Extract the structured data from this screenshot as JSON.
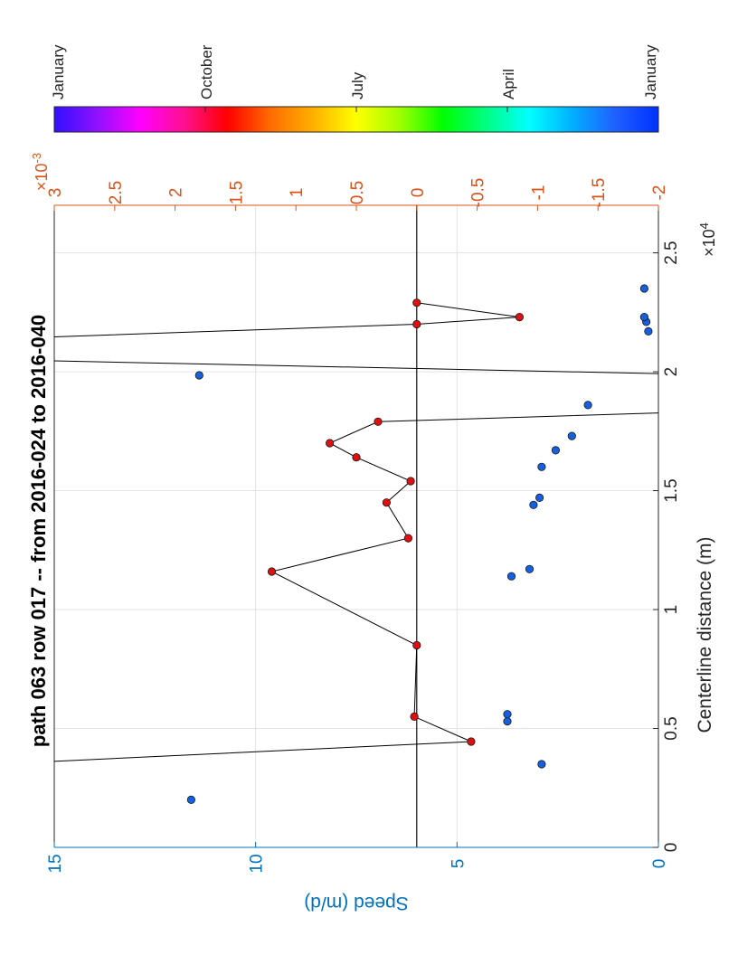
{
  "chart_data": {
    "type": "scatter",
    "title": "path 063 row 017  -- from 2016-024 to 2016-040",
    "orientation": "rotated 90° clockwise (page rotated)",
    "xlabel": "Centerline distance (m)",
    "x_exponent": "4",
    "xlim": [
      0,
      27000
    ],
    "x_ticks": [
      0,
      5000,
      10000,
      15000,
      20000,
      25000
    ],
    "x_tick_labels": [
      "0",
      "0.5",
      "1",
      "1.5",
      "2",
      "2.5"
    ],
    "x_multiplier_label": "×10",
    "y_left": {
      "label": "Speed (m/d)",
      "lim": [
        0,
        15
      ],
      "ticks": [
        0,
        5,
        10,
        15
      ],
      "tick_labels": [
        "0",
        "5",
        "10",
        "15"
      ],
      "color": "#0072BD"
    },
    "y_right": {
      "lim": [
        -0.002,
        0.003
      ],
      "ticks": [
        -0.002,
        -0.0015,
        -0.001,
        -0.0005,
        0,
        0.0005,
        0.001,
        0.0015,
        0.002,
        0.0025,
        0.003
      ],
      "tick_labels": [
        "-2",
        "-1.5",
        "-1",
        "-0.5",
        "0",
        "0.5",
        "1",
        "1.5",
        "2",
        "2.5",
        "3"
      ],
      "multiplier_label": "×10",
      "exponent": "-3",
      "color": "#D95319"
    },
    "grid": true,
    "zero_line_right": 0,
    "series": [
      {
        "marker": "blue-dot",
        "color": "#1560e0",
        "axis": "left",
        "points": [
          {
            "x": 2000,
            "y": 11.6
          },
          {
            "x": 3500,
            "y": 2.9
          },
          {
            "x": 5300,
            "y": 3.75
          },
          {
            "x": 5600,
            "y": 3.75
          },
          {
            "x": 11400,
            "y": 3.65
          },
          {
            "x": 11700,
            "y": 3.2
          },
          {
            "x": 14400,
            "y": 3.1
          },
          {
            "x": 14700,
            "y": 2.95
          },
          {
            "x": 16000,
            "y": 2.9
          },
          {
            "x": 16700,
            "y": 2.55
          },
          {
            "x": 17300,
            "y": 2.15
          },
          {
            "x": 18600,
            "y": 1.75
          },
          {
            "x": 19850,
            "y": 11.4
          },
          {
            "x": 21700,
            "y": 0.25
          },
          {
            "x": 22100,
            "y": 0.3
          },
          {
            "x": 22300,
            "y": 0.35
          },
          {
            "x": 23500,
            "y": 0.35
          }
        ]
      },
      {
        "marker": "red-dot-line",
        "color": "#e01010",
        "axis": "right",
        "line": [
          {
            "x": 3500,
            "y": 0.0035
          },
          {
            "x": 4450,
            "y": -0.00045
          },
          {
            "x": 5500,
            "y": 2e-05
          },
          {
            "x": 8500,
            "y": 0.0
          },
          {
            "x": 11600,
            "y": 0.0012
          },
          {
            "x": 13000,
            "y": 7e-05
          },
          {
            "x": 14500,
            "y": 0.00025
          },
          {
            "x": 15400,
            "y": 5e-05
          },
          {
            "x": 16400,
            "y": 0.0005
          },
          {
            "x": 17000,
            "y": 0.00072
          },
          {
            "x": 17900,
            "y": 0.00032
          },
          {
            "x": 18300,
            "y": -0.0022
          },
          {
            "x": 19900,
            "y": -0.0022
          },
          {
            "x": 20500,
            "y": 0.0034
          },
          {
            "x": 21400,
            "y": 0.0034
          },
          {
            "x": 22000,
            "y": 0.0
          },
          {
            "x": 22300,
            "y": -0.00085
          },
          {
            "x": 22900,
            "y": 0.0
          }
        ],
        "points": [
          {
            "x": 4450,
            "y": -0.00045
          },
          {
            "x": 5500,
            "y": 2e-05
          },
          {
            "x": 8500,
            "y": 0.0
          },
          {
            "x": 11600,
            "y": 0.0012
          },
          {
            "x": 13000,
            "y": 7e-05
          },
          {
            "x": 14500,
            "y": 0.00025
          },
          {
            "x": 15400,
            "y": 5e-05
          },
          {
            "x": 16400,
            "y": 0.0005
          },
          {
            "x": 17000,
            "y": 0.00072
          },
          {
            "x": 17900,
            "y": 0.00032
          },
          {
            "x": 22000,
            "y": 0.0
          },
          {
            "x": 22300,
            "y": -0.00085
          },
          {
            "x": 22900,
            "y": 0.0
          }
        ]
      }
    ],
    "colorbar": {
      "labels": [
        "January",
        "October",
        "July",
        "April",
        "January"
      ],
      "label_positions": [
        0,
        0.25,
        0.5,
        0.75,
        1
      ],
      "colors": [
        "#3010ff",
        "#9010ff",
        "#ff00ff",
        "#ff1090",
        "#ff0000",
        "#ff6a00",
        "#ffb000",
        "#ffff00",
        "#a0ff00",
        "#00ff00",
        "#00ff80",
        "#00ffff",
        "#00b0ff",
        "#2060ff",
        "#0030ff"
      ]
    }
  }
}
